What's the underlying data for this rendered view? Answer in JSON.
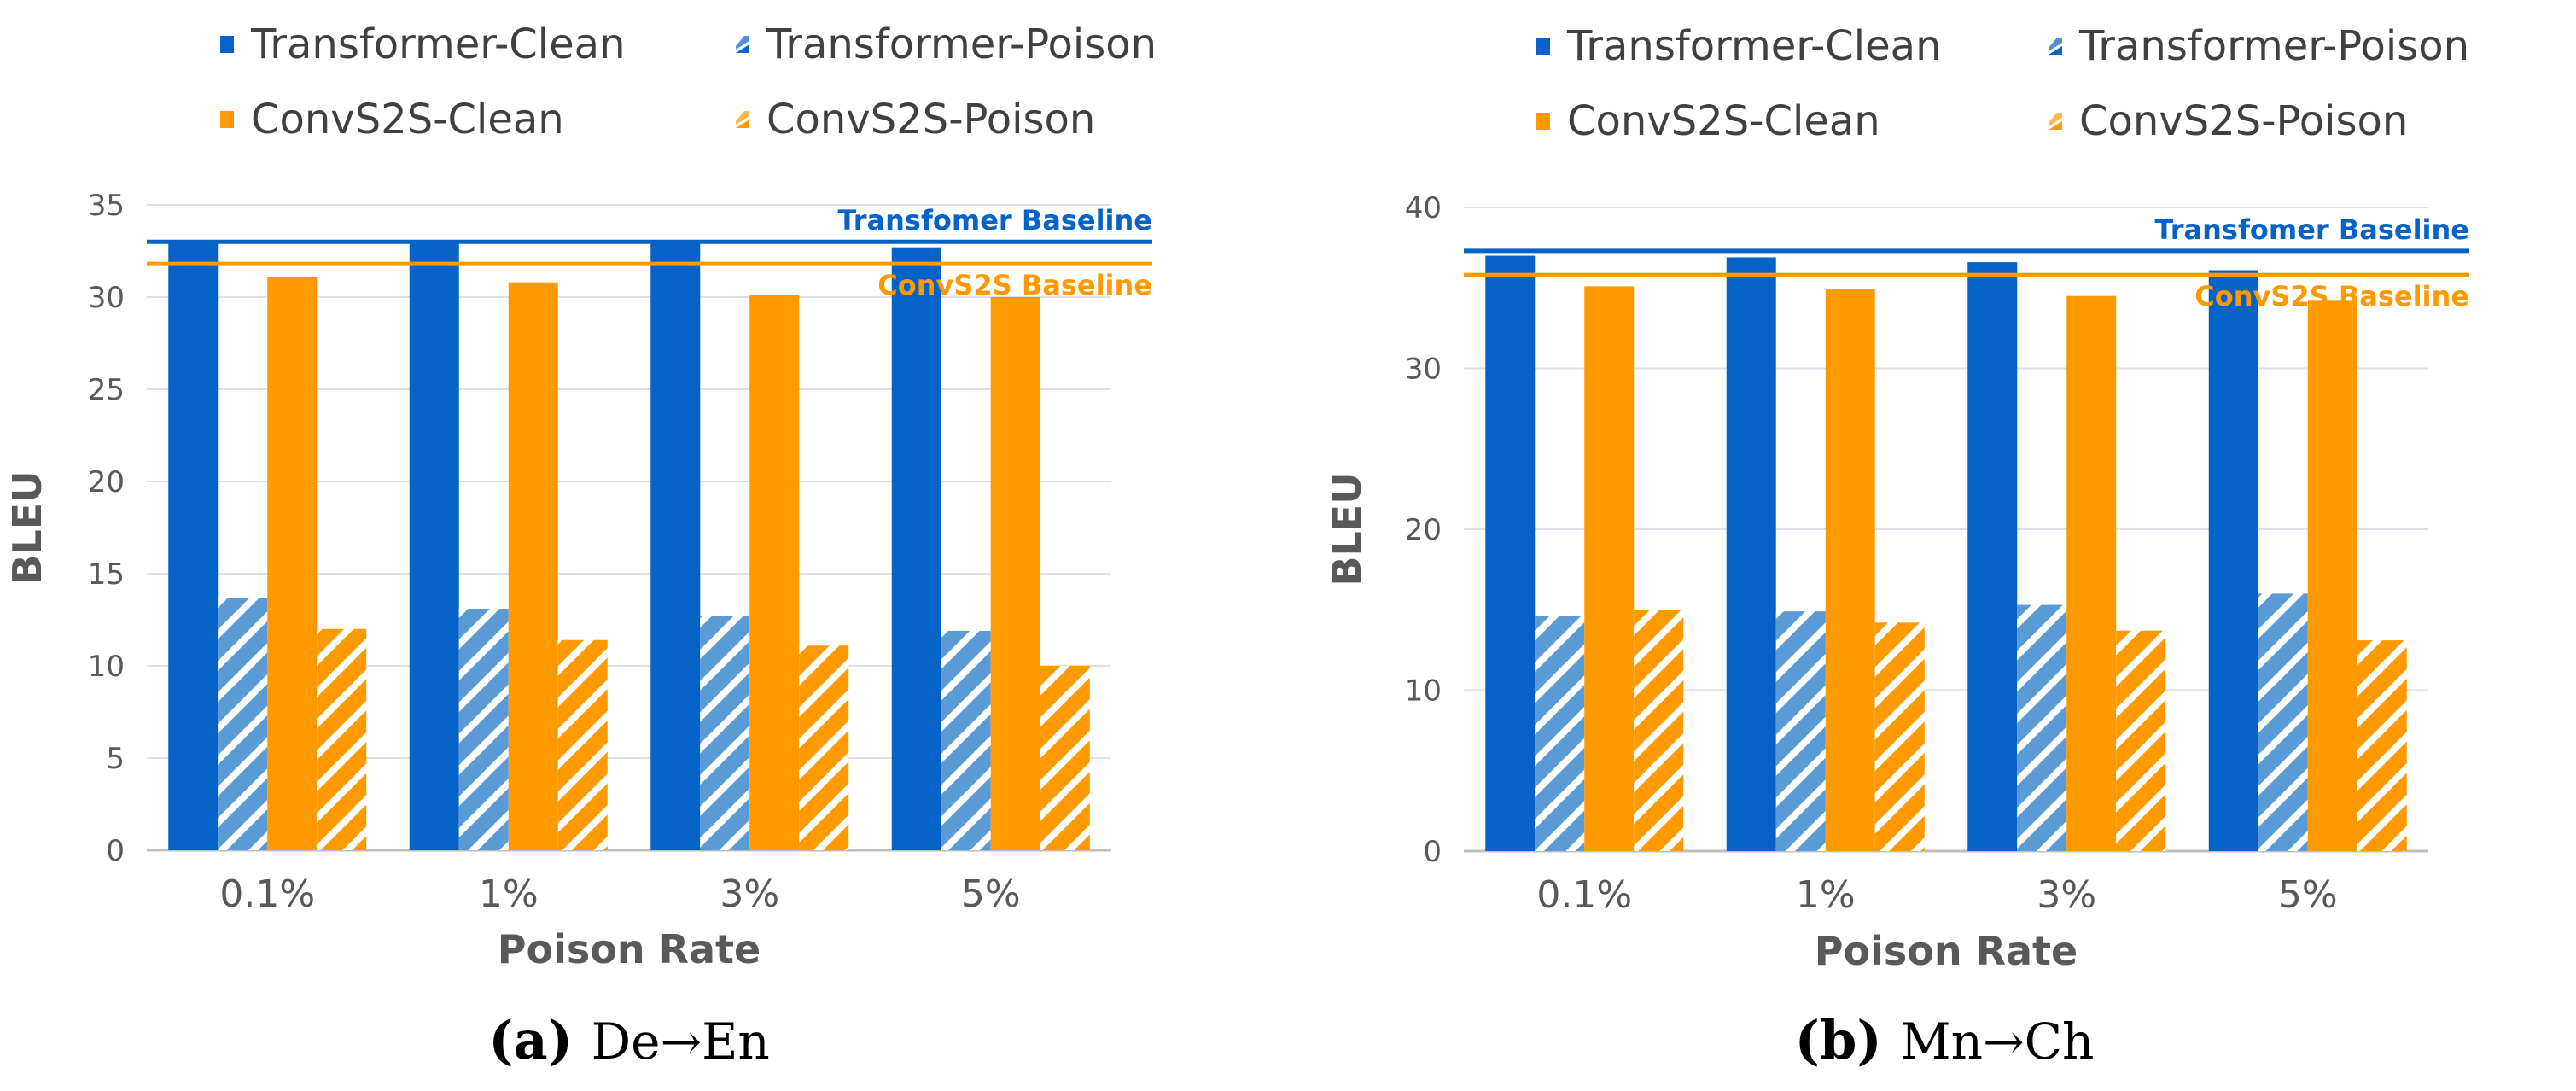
{
  "colors": {
    "transformer": "#0563C8",
    "transformer_poison_fill": "#5B9BD5",
    "convs2s": "#FF9900",
    "grid": "#DCE0EA",
    "axis": "#BFBFBF",
    "text": "#595959"
  },
  "legend": [
    {
      "name": "Transformer-Clean",
      "style": "solid",
      "color": "#0563C8"
    },
    {
      "name": "Transformer-Poison",
      "style": "hatched",
      "color": "#0563C8"
    },
    {
      "name": "ConvS2S-Clean",
      "style": "solid",
      "color": "#FF9900"
    },
    {
      "name": "ConvS2S-Poison",
      "style": "hatched",
      "color": "#FF9900"
    }
  ],
  "chart_data": [
    {
      "type": "bar",
      "caption_label": "(a)",
      "caption_text": "De→En",
      "xlabel": "Poison Rate",
      "ylabel": "BLEU",
      "ylim": [
        0,
        35
      ],
      "yticks": [
        0,
        5,
        10,
        15,
        20,
        25,
        30,
        35
      ],
      "categories": [
        "0.1%",
        "1%",
        "3%",
        "5%"
      ],
      "series": [
        {
          "name": "Transformer-Clean",
          "values": [
            33.0,
            33.0,
            32.9,
            32.7
          ]
        },
        {
          "name": "Transformer-Poison",
          "values": [
            13.7,
            13.1,
            12.7,
            11.9
          ]
        },
        {
          "name": "ConvS2S-Clean",
          "values": [
            31.1,
            30.8,
            30.1,
            30.0
          ]
        },
        {
          "name": "ConvS2S-Poison",
          "values": [
            12.0,
            11.4,
            11.1,
            10.0
          ]
        }
      ],
      "baselines": [
        {
          "label": "Transfomer Baseline",
          "value": 33.0,
          "color": "#0563C8"
        },
        {
          "label": "ConvS2S Baseline",
          "value": 31.8,
          "color": "#FF9900"
        }
      ]
    },
    {
      "type": "bar",
      "caption_label": "(b)",
      "caption_text": "Mn→Ch",
      "xlabel": "Poison Rate",
      "ylabel": "BLEU",
      "ylim": [
        0,
        40
      ],
      "yticks": [
        0,
        10,
        20,
        30,
        40
      ],
      "categories": [
        "0.1%",
        "1%",
        "3%",
        "5%"
      ],
      "series": [
        {
          "name": "Transformer-Clean",
          "values": [
            37.0,
            36.9,
            36.6,
            36.1
          ]
        },
        {
          "name": "Transformer-Poison",
          "values": [
            14.6,
            14.9,
            15.3,
            16.0
          ]
        },
        {
          "name": "ConvS2S-Clean",
          "values": [
            35.1,
            34.9,
            34.5,
            34.2
          ]
        },
        {
          "name": "ConvS2S-Poison",
          "values": [
            15.0,
            14.2,
            13.7,
            13.1
          ]
        }
      ],
      "baselines": [
        {
          "label": "Transfomer Baseline",
          "value": 37.3,
          "color": "#0563C8"
        },
        {
          "label": "ConvS2S Baseline",
          "value": 35.8,
          "color": "#FF9900"
        }
      ]
    }
  ]
}
